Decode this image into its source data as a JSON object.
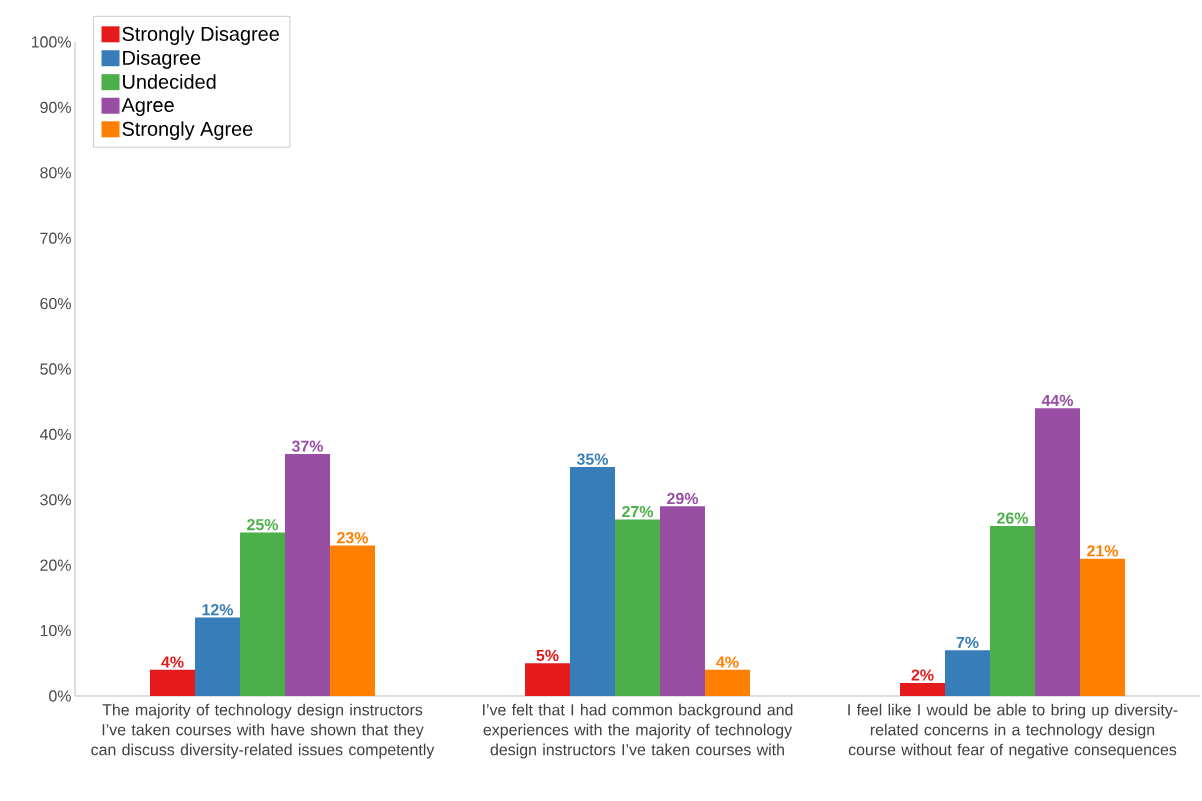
{
  "chart_data": {
    "type": "bar",
    "categories": [
      "The majority of technology design instructors I’ve taken courses with have shown that they can discuss diversity-related issues competently",
      "I’ve felt that I had common background and experiences with the majority of technology design instructors I’ve taken courses with",
      "I feel like I would be able to bring up diversity-related concerns in a technology design course without fear of negative consequences"
    ],
    "series": [
      {
        "name": "Strongly Disagree",
        "color": "#e41a1c",
        "values": [
          4,
          5,
          2
        ],
        "value_labels": [
          "4%",
          "5%",
          "2%"
        ]
      },
      {
        "name": "Disagree",
        "color": "#377eb8",
        "values": [
          12,
          35,
          7
        ],
        "value_labels": [
          "12%",
          "35%",
          "7%"
        ]
      },
      {
        "name": "Undecided",
        "color": "#4daf4a",
        "values": [
          25,
          27,
          26
        ],
        "value_labels": [
          "25%",
          "27%",
          "26%"
        ]
      },
      {
        "name": "Agree",
        "color": "#984ea3",
        "values": [
          37,
          29,
          44
        ],
        "value_labels": [
          "37%",
          "29%",
          "44%"
        ]
      },
      {
        "name": "Strongly Agree",
        "color": "#ff7f00",
        "values": [
          23,
          4,
          21
        ],
        "value_labels": [
          "23%",
          "4%",
          "21%"
        ]
      }
    ],
    "ylim": [
      0,
      100
    ],
    "yticks": [
      {
        "value": 0,
        "label": "0%"
      },
      {
        "value": 10,
        "label": "10%"
      },
      {
        "value": 20,
        "label": "20%"
      },
      {
        "value": 30,
        "label": "30%"
      },
      {
        "value": 40,
        "label": "40%"
      },
      {
        "value": 50,
        "label": "50%"
      },
      {
        "value": 60,
        "label": "60%"
      },
      {
        "value": 70,
        "label": "70%"
      },
      {
        "value": 80,
        "label": "80%"
      },
      {
        "value": 90,
        "label": "90%"
      },
      {
        "value": 100,
        "label": "100%"
      }
    ],
    "grid": false,
    "legend": "top left"
  }
}
